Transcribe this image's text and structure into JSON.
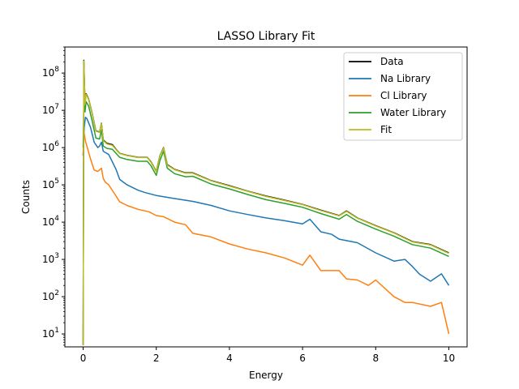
{
  "chart_data": {
    "type": "line",
    "title": "LASSO Library Fit",
    "xlabel": "Energy",
    "ylabel": "Counts",
    "yscale": "log",
    "xlim": [
      -0.5,
      10.5
    ],
    "ylim": [
      4.5,
      500000000
    ],
    "xticks": [
      0,
      2,
      4,
      6,
      8,
      10
    ],
    "xtick_labels": [
      "0",
      "2",
      "4",
      "6",
      "8",
      "10"
    ],
    "yticks": [
      10,
      100,
      1000,
      10000,
      100000,
      1000000,
      10000000,
      100000000
    ],
    "ytick_labels": [
      {
        "base": "10",
        "exp": "1"
      },
      {
        "base": "10",
        "exp": "2"
      },
      {
        "base": "10",
        "exp": "3"
      },
      {
        "base": "10",
        "exp": "4"
      },
      {
        "base": "10",
        "exp": "5"
      },
      {
        "base": "10",
        "exp": "6"
      },
      {
        "base": "10",
        "exp": "7"
      },
      {
        "base": "10",
        "exp": "8"
      }
    ],
    "grid": false,
    "legend_position": "top-right",
    "series": [
      {
        "name": "Data",
        "color": "#000000",
        "x": [
          0,
          0.02,
          0.05,
          0.08,
          0.15,
          0.25,
          0.35,
          0.45,
          0.5,
          0.55,
          0.65,
          0.8,
          0.9,
          1.0,
          1.2,
          1.5,
          1.75,
          1.85,
          2.0,
          2.1,
          2.2,
          2.3,
          2.5,
          2.8,
          3.0,
          3.5,
          4.0,
          4.5,
          5.0,
          5.5,
          6.0,
          6.5,
          7.0,
          7.2,
          7.5,
          8.0,
          8.5,
          9.0,
          9.5,
          10.0
        ],
        "y": [
          5,
          220000000,
          15000000,
          28000000,
          20000000,
          8000000,
          2800000,
          2600000,
          4500000,
          1600000,
          1300000,
          1200000,
          900000,
          700000,
          620000,
          550000,
          550000,
          420000,
          230000,
          600000,
          1000000,
          350000,
          260000,
          210000,
          210000,
          130000,
          95000,
          68000,
          50000,
          39000,
          30000,
          21000,
          15000,
          20000,
          13000,
          8000,
          5200,
          3000,
          2500,
          1500
        ]
      },
      {
        "name": "Na Library",
        "color": "#1f77b4",
        "x": [
          0,
          0.03,
          0.06,
          0.1,
          0.2,
          0.3,
          0.4,
          0.45,
          0.5,
          0.55,
          0.7,
          0.9,
          1.0,
          1.2,
          1.5,
          1.7,
          2.0,
          2.5,
          3.0,
          3.5,
          4.0,
          4.5,
          5.0,
          5.5,
          6.0,
          6.2,
          6.5,
          6.8,
          7.0,
          7.5,
          8.0,
          8.5,
          8.8,
          9.0,
          9.2,
          9.5,
          9.8,
          10.0
        ],
        "y": [
          600000,
          3500000,
          6500000,
          6000000,
          3500000,
          1400000,
          1000000,
          1100000,
          1400000,
          800000,
          650000,
          260000,
          140000,
          100000,
          72000,
          62000,
          52000,
          43000,
          36000,
          28000,
          20000,
          16000,
          13000,
          11000,
          9000,
          12000,
          5500,
          4700,
          3500,
          2800,
          1500,
          900,
          1000,
          650,
          400,
          260,
          410,
          200
        ]
      },
      {
        "name": "Cl Library",
        "color": "#ff7f0e",
        "x": [
          0,
          0.02,
          0.06,
          0.1,
          0.2,
          0.3,
          0.4,
          0.5,
          0.55,
          0.6,
          0.7,
          0.9,
          1.0,
          1.2,
          1.5,
          1.8,
          2.0,
          2.2,
          2.5,
          2.8,
          3.0,
          3.5,
          4.0,
          4.5,
          5.0,
          5.5,
          6.0,
          6.2,
          6.5,
          7.0,
          7.2,
          7.5,
          7.8,
          8.0,
          8.5,
          8.8,
          9.0,
          9.5,
          9.8,
          10.0
        ],
        "y": [
          700000,
          2800000,
          1500000,
          1100000,
          500000,
          250000,
          230000,
          280000,
          150000,
          120000,
          100000,
          50000,
          35000,
          28000,
          22000,
          19000,
          15000,
          14000,
          10000,
          8500,
          5000,
          4000,
          2600,
          1900,
          1500,
          1100,
          700,
          1300,
          500,
          500,
          300,
          280,
          200,
          280,
          100,
          70,
          70,
          55,
          70,
          10
        ]
      },
      {
        "name": "Water Library",
        "color": "#2ca02c",
        "x": [
          0,
          0.02,
          0.05,
          0.08,
          0.15,
          0.25,
          0.35,
          0.45,
          0.5,
          0.55,
          0.65,
          0.8,
          0.9,
          1.0,
          1.2,
          1.5,
          1.75,
          1.85,
          2.0,
          2.1,
          2.2,
          2.3,
          2.5,
          2.8,
          3.0,
          3.5,
          4.0,
          4.5,
          5.0,
          5.5,
          6.0,
          6.5,
          7.0,
          7.2,
          7.5,
          8.0,
          8.5,
          9.0,
          9.5,
          10.0
        ],
        "y": [
          1000000,
          18000000,
          9000000,
          17000000,
          13000000,
          5000000,
          1800000,
          1700000,
          3000000,
          1100000,
          950000,
          900000,
          700000,
          550000,
          480000,
          430000,
          430000,
          330000,
          180000,
          450000,
          800000,
          280000,
          200000,
          165000,
          170000,
          105000,
          78000,
          55000,
          40000,
          32000,
          25000,
          17000,
          12000,
          16000,
          10500,
          6500,
          4200,
          2500,
          2000,
          1200
        ]
      },
      {
        "name": "Fit",
        "color": "#bcbd22",
        "x": [
          0,
          0.02,
          0.05,
          0.08,
          0.15,
          0.25,
          0.35,
          0.45,
          0.5,
          0.55,
          0.65,
          0.8,
          0.9,
          1.0,
          1.2,
          1.5,
          1.75,
          1.85,
          2.0,
          2.1,
          2.2,
          2.3,
          2.5,
          2.8,
          3.0,
          3.5,
          4.0,
          4.5,
          5.0,
          5.5,
          6.0,
          6.5,
          7.0,
          7.2,
          7.5,
          8.0,
          8.5,
          9.0,
          9.5,
          10.0
        ],
        "y": [
          5,
          210000000,
          14500000,
          27000000,
          19500000,
          7800000,
          2750000,
          2550000,
          4400000,
          1550000,
          1250000,
          1150000,
          880000,
          690000,
          610000,
          540000,
          540000,
          410000,
          225000,
          590000,
          980000,
          340000,
          255000,
          205000,
          205000,
          128000,
          93000,
          67000,
          49000,
          38000,
          29500,
          20500,
          14800,
          19500,
          12800,
          7900,
          5100,
          2950,
          2450,
          1450
        ]
      }
    ]
  }
}
